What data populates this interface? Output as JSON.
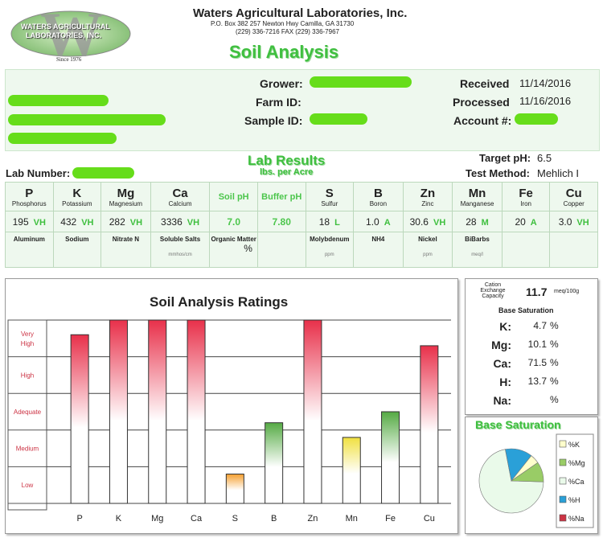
{
  "company": {
    "logo_letter": "W",
    "logo_line1": "WATERS AGRICULTURAL",
    "logo_line2": "LABORATORIES, INC.",
    "logo_since": "Since 1976",
    "name": "Waters Agricultural Laboratories, Inc.",
    "address": "P.O. Box 382 257 Newton Hwy Camilla, GA 31730",
    "phone": "(229) 336-7216 FAX (229) 336-7967"
  },
  "report_title": "Soil Analysis",
  "header": {
    "grower_label": "Grower:",
    "farm_id_label": "Farm ID:",
    "sample_id_label": "Sample ID:",
    "received_label": "Received",
    "received_value": "11/14/2016",
    "processed_label": "Processed",
    "processed_value": "11/16/2016",
    "account_label": "Account #:"
  },
  "lab": {
    "title": "Lab Results",
    "subtitle": "lbs. per Acre",
    "lab_number_label": "Lab Number:",
    "target_ph_label": "Target pH:",
    "target_ph_value": "6.5",
    "test_method_label": "Test Method:",
    "test_method_value": "Mehlich I"
  },
  "results_row1": [
    {
      "symbol": "P",
      "name": "Phosphorus",
      "value": "195",
      "rating": "VH"
    },
    {
      "symbol": "K",
      "name": "Potassium",
      "value": "432",
      "rating": "VH"
    },
    {
      "symbol": "Mg",
      "name": "Magnesium",
      "value": "282",
      "rating": "VH"
    },
    {
      "symbol": "Ca",
      "name": "Calcium",
      "value": "3336",
      "rating": "VH"
    },
    {
      "symbol": "Soil pH",
      "name": "",
      "value": "7.0",
      "rating": ""
    },
    {
      "symbol": "Buffer pH",
      "name": "",
      "value": "7.80",
      "rating": ""
    },
    {
      "symbol": "S",
      "name": "Sulfur",
      "value": "18",
      "rating": "L"
    },
    {
      "symbol": "B",
      "name": "Boron",
      "value": "1.0",
      "rating": "A"
    },
    {
      "symbol": "Zn",
      "name": "Zinc",
      "value": "30.6",
      "rating": "VH"
    },
    {
      "symbol": "Mn",
      "name": "Manganese",
      "value": "28",
      "rating": "M"
    },
    {
      "symbol": "Fe",
      "name": "Iron",
      "value": "20",
      "rating": "A"
    },
    {
      "symbol": "Cu",
      "name": "Copper",
      "value": "3.0",
      "rating": "VH"
    }
  ],
  "results_row2": [
    {
      "name": "Aluminum",
      "value": "",
      "unit": ""
    },
    {
      "name": "Sodium",
      "value": "",
      "unit": ""
    },
    {
      "name": "Nitrate N",
      "value": "",
      "unit": ""
    },
    {
      "name": "Soluble Salts",
      "value": "",
      "unit": "mmhos/cm"
    },
    {
      "name": "Organic Matter",
      "value": "%",
      "unit": ""
    },
    {
      "name": "",
      "value": "",
      "unit": ""
    },
    {
      "name": "Molybdenum",
      "value": "",
      "unit": "ppm"
    },
    {
      "name": "NH4",
      "value": "",
      "unit": ""
    },
    {
      "name": "Nickel",
      "value": "",
      "unit": "ppm"
    },
    {
      "name": "BiBarbs",
      "value": "",
      "unit": "meq/l"
    },
    {
      "name": "",
      "value": "",
      "unit": ""
    },
    {
      "name": "",
      "value": "",
      "unit": ""
    }
  ],
  "cec": {
    "label_line1": "Cation",
    "label_line2": "Exchange",
    "label_line3": "Capacity",
    "value": "11.7",
    "unit": "meq/100g"
  },
  "base_saturation": {
    "title": "Base Saturation",
    "items": [
      {
        "label": "K:",
        "value": "4.7",
        "unit": "%"
      },
      {
        "label": "Mg:",
        "value": "10.1",
        "unit": "%"
      },
      {
        "label": "Ca:",
        "value": "71.5",
        "unit": "%"
      },
      {
        "label": "H:",
        "value": "13.7",
        "unit": "%"
      },
      {
        "label": "Na:",
        "value": "",
        "unit": "%"
      }
    ]
  },
  "pie_title": "Base Saturation",
  "colors": {
    "k": "#ffffcc",
    "mg": "#99cc66",
    "ca": "#eafaea",
    "h": "#2aa0d8",
    "na": "#cc3344"
  },
  "chart_data": [
    {
      "type": "bar",
      "title": "Soil Analysis Ratings",
      "categories": [
        "P",
        "K",
        "Mg",
        "Ca",
        "S",
        "B",
        "Zn",
        "Mn",
        "Fe",
        "Cu"
      ],
      "y_categories": [
        "Low",
        "Medium",
        "Adequate",
        "High",
        "Very High"
      ],
      "values": [
        4.6,
        5.0,
        5.0,
        5.0,
        0.8,
        2.2,
        5.0,
        1.8,
        2.5,
        4.3
      ],
      "bar_colors": [
        "#e8304a",
        "#e8304a",
        "#e8304a",
        "#e8304a",
        "#f5a030",
        "#55aa44",
        "#e8304a",
        "#f0e040",
        "#55aa44",
        "#e8304a"
      ],
      "ylim": [
        0,
        5
      ],
      "grid": true
    },
    {
      "type": "pie",
      "title": "Base Saturation",
      "labels": [
        "%K",
        "%Mg",
        "%Ca",
        "%H",
        "%Na"
      ],
      "values": [
        4.7,
        10.1,
        71.5,
        13.7,
        0
      ]
    }
  ]
}
